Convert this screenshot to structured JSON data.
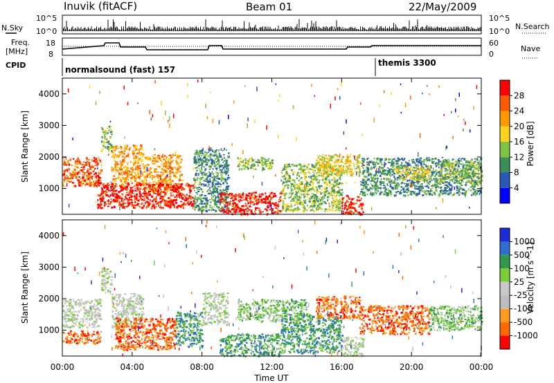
{
  "header": {
    "station": "Inuvik (fitACF)",
    "beam": "Beam 01",
    "date": "22/May/2009"
  },
  "strip": {
    "n_sky_label": "N.Sky",
    "n_search_label": "N.Search",
    "freq_label_line1": "Freq.",
    "freq_label_line2": "[MHz]",
    "nave_label": "Nave",
    "cpid_label": "CPID",
    "n_left_ticks": [
      "10^5",
      "10^0"
    ],
    "n_right_ticks": [
      "10^5",
      "10^0"
    ],
    "freq_left_ticks": [
      "18",
      "8"
    ],
    "freq_right_ticks": [
      "60",
      "0"
    ],
    "cpid_programs": [
      {
        "name": "normalsound (fast) 157",
        "start_hour": 0
      },
      {
        "name": "themis 3300",
        "start_hour": 18.0
      }
    ]
  },
  "colors": {
    "power_scale": [
      "#0000ff",
      "#2a58b8",
      "#3d8f5a",
      "#7fc241",
      "#ffd21f",
      "#ff9a00",
      "#ff5a00",
      "#ff0000"
    ],
    "velocity_scale": [
      "#1d2bd6",
      "#2f6fd0",
      "#2e9a4a",
      "#7ccc3c",
      "#c8c8c8",
      "#bdbdbd",
      "#ff9a1f",
      "#ff6a00",
      "#ff0000"
    ],
    "grey_ground": "#c0c0c0"
  },
  "chart_data": [
    {
      "type": "heatmap",
      "name": "Power",
      "ylabel": "Slant Range [km]",
      "xlabel": "Time UT",
      "x_ticks": [
        "00:00",
        "04:00",
        "08:00",
        "12:00",
        "16:00",
        "20:00",
        "00:00"
      ],
      "y_ticks": [
        1000,
        2000,
        3000,
        4000
      ],
      "ylim": [
        180,
        4500
      ],
      "xlim_hours": [
        0,
        24
      ],
      "colorbar_label": "Power [dB]",
      "colorbar_ticks": [
        4,
        8,
        12,
        16,
        20,
        24,
        28
      ],
      "echo_regions": [
        {
          "t0": 0.0,
          "t1": 2.2,
          "r0": 1100,
          "r1": 2000,
          "level": 6
        },
        {
          "t0": 2.2,
          "t1": 2.8,
          "r0": 2200,
          "r1": 3000,
          "level": 3
        },
        {
          "t0": 2.8,
          "t1": 4.6,
          "r0": 1100,
          "r1": 2400,
          "level": 5
        },
        {
          "t0": 4.6,
          "t1": 6.8,
          "r0": 900,
          "r1": 2100,
          "level": 5
        },
        {
          "t0": 2.0,
          "t1": 7.5,
          "r0": 400,
          "r1": 1200,
          "level": 7
        },
        {
          "t0": 7.5,
          "t1": 9.5,
          "r0": 300,
          "r1": 2300,
          "level": 2
        },
        {
          "t0": 9.0,
          "t1": 12.5,
          "r0": 200,
          "r1": 900,
          "level": 7
        },
        {
          "t0": 10.0,
          "t1": 12.0,
          "r0": 1600,
          "r1": 2000,
          "level": 3
        },
        {
          "t0": 12.5,
          "t1": 16.0,
          "r0": 300,
          "r1": 1800,
          "level": 3
        },
        {
          "t0": 14.5,
          "t1": 17.0,
          "r0": 1400,
          "r1": 2100,
          "level": 4
        },
        {
          "t0": 16.0,
          "t1": 17.2,
          "r0": 200,
          "r1": 800,
          "level": 7
        },
        {
          "t0": 17.0,
          "t1": 24.0,
          "r0": 800,
          "r1": 2000,
          "level": 2
        },
        {
          "t0": 19.0,
          "t1": 21.0,
          "r0": 1300,
          "r1": 1700,
          "level": 4
        },
        {
          "t0": 21.5,
          "t1": 24.0,
          "r0": 1200,
          "r1": 1900,
          "level": 3
        }
      ]
    },
    {
      "type": "heatmap",
      "name": "Velocity",
      "ylabel": "Slant Range [km]",
      "xlabel": "Time UT",
      "x_ticks": [
        "00:00",
        "04:00",
        "08:00",
        "12:00",
        "16:00",
        "20:00",
        "00:00"
      ],
      "y_ticks": [
        1000,
        2000,
        3000,
        4000
      ],
      "ylim": [
        180,
        4500
      ],
      "xlim_hours": [
        0,
        24
      ],
      "colorbar_label": "Velocity [m s^-1]",
      "colorbar_ticks": [
        1000,
        500,
        100,
        25,
        -25,
        -100,
        -500,
        -1000
      ],
      "echo_regions": [
        {
          "t0": 0.0,
          "t1": 2.2,
          "r0": 1100,
          "r1": 2000,
          "level": 4
        },
        {
          "t0": 0.0,
          "t1": 2.2,
          "r0": 600,
          "r1": 1000,
          "level": 7
        },
        {
          "t0": 2.2,
          "t1": 2.8,
          "r0": 2200,
          "r1": 3000,
          "level": 4
        },
        {
          "t0": 2.8,
          "t1": 4.6,
          "r0": 1100,
          "r1": 2200,
          "level": 4
        },
        {
          "t0": 3.0,
          "t1": 6.5,
          "r0": 400,
          "r1": 1400,
          "level": 7
        },
        {
          "t0": 6.5,
          "t1": 8.0,
          "r0": 500,
          "r1": 1600,
          "level": 2
        },
        {
          "t0": 8.0,
          "t1": 9.5,
          "r0": 1200,
          "r1": 2200,
          "level": 4
        },
        {
          "t0": 9.0,
          "t1": 12.5,
          "r0": 200,
          "r1": 900,
          "level": 2
        },
        {
          "t0": 10.0,
          "t1": 14.0,
          "r0": 1300,
          "r1": 2000,
          "level": 3
        },
        {
          "t0": 12.5,
          "t1": 16.0,
          "r0": 300,
          "r1": 1500,
          "level": 2
        },
        {
          "t0": 14.5,
          "t1": 17.0,
          "r0": 1400,
          "r1": 2100,
          "level": 7
        },
        {
          "t0": 16.0,
          "t1": 17.2,
          "r0": 200,
          "r1": 800,
          "level": 4
        },
        {
          "t0": 17.0,
          "t1": 21.0,
          "r0": 900,
          "r1": 1800,
          "level": 7
        },
        {
          "t0": 21.0,
          "t1": 24.0,
          "r0": 1000,
          "r1": 1800,
          "level": 3
        }
      ]
    }
  ]
}
